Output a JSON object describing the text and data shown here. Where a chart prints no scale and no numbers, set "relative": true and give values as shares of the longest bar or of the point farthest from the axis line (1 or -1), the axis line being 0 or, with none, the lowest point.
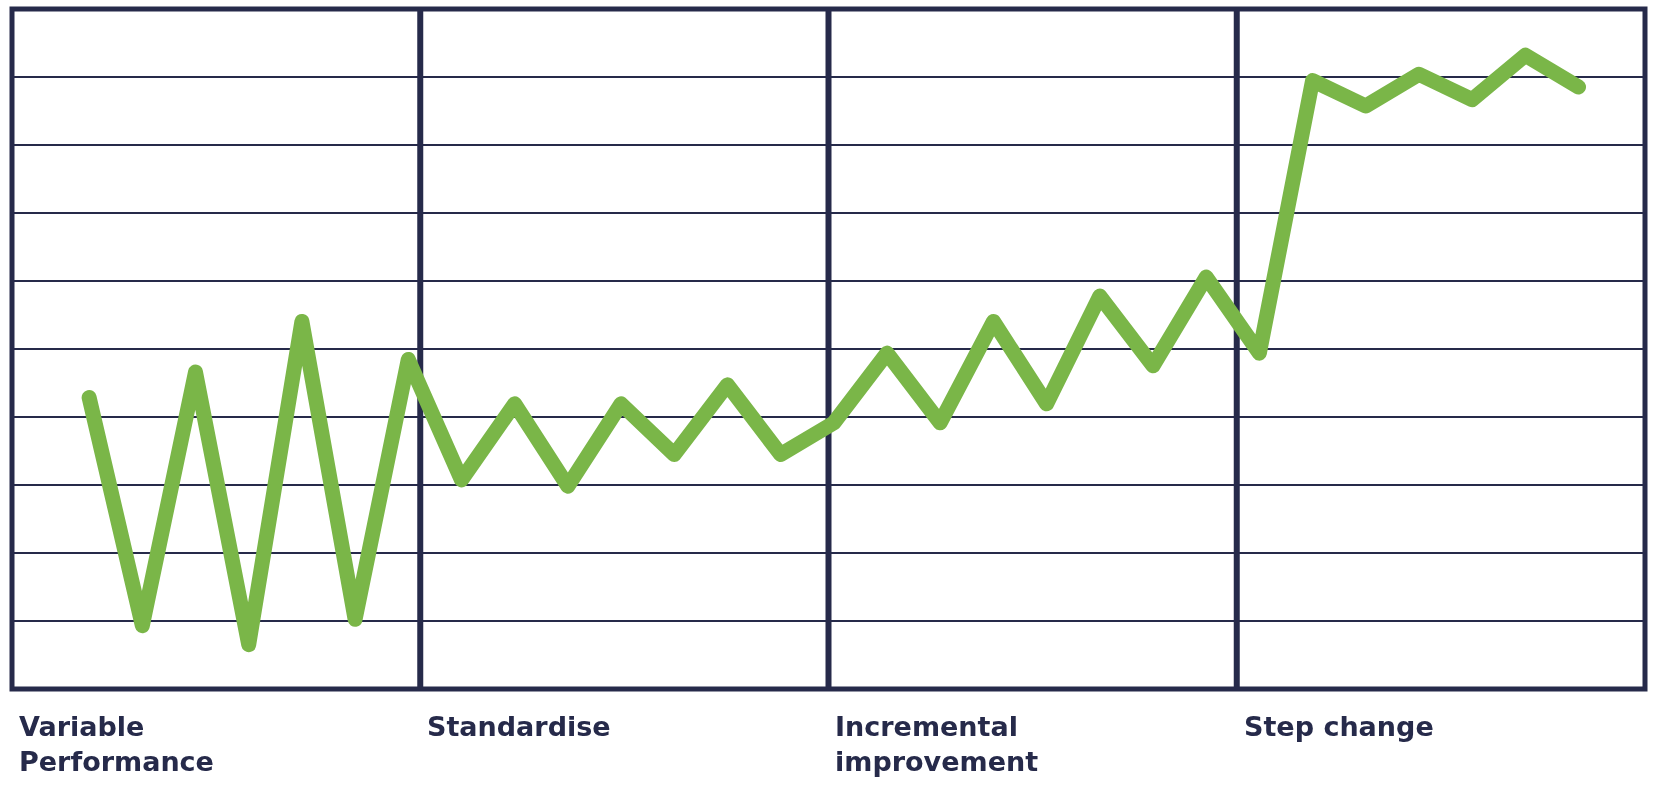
{
  "chart_data": {
    "type": "line",
    "relative": true,
    "color": "#7ab648",
    "grid": true,
    "categories": [
      null,
      null,
      null,
      null,
      null,
      null,
      null,
      null,
      null,
      null,
      null,
      null,
      null,
      null,
      null,
      null,
      null,
      null,
      null,
      null,
      null,
      null,
      null,
      null,
      null,
      null,
      null,
      null,
      null
    ],
    "values": [
      0.46,
      0.1,
      0.5,
      0.07,
      0.58,
      0.11,
      0.52,
      0.33,
      0.45,
      0.32,
      0.45,
      0.37,
      0.48,
      0.37,
      0.42,
      0.53,
      0.42,
      0.58,
      0.45,
      0.62,
      0.51,
      0.65,
      0.53,
      0.96,
      0.92,
      0.97,
      0.93,
      1.0,
      0.95
    ],
    "annotations": [
      "Variable\nPerformance",
      "Standardise",
      "Incremental\nimprovement",
      "Step change"
    ]
  }
}
